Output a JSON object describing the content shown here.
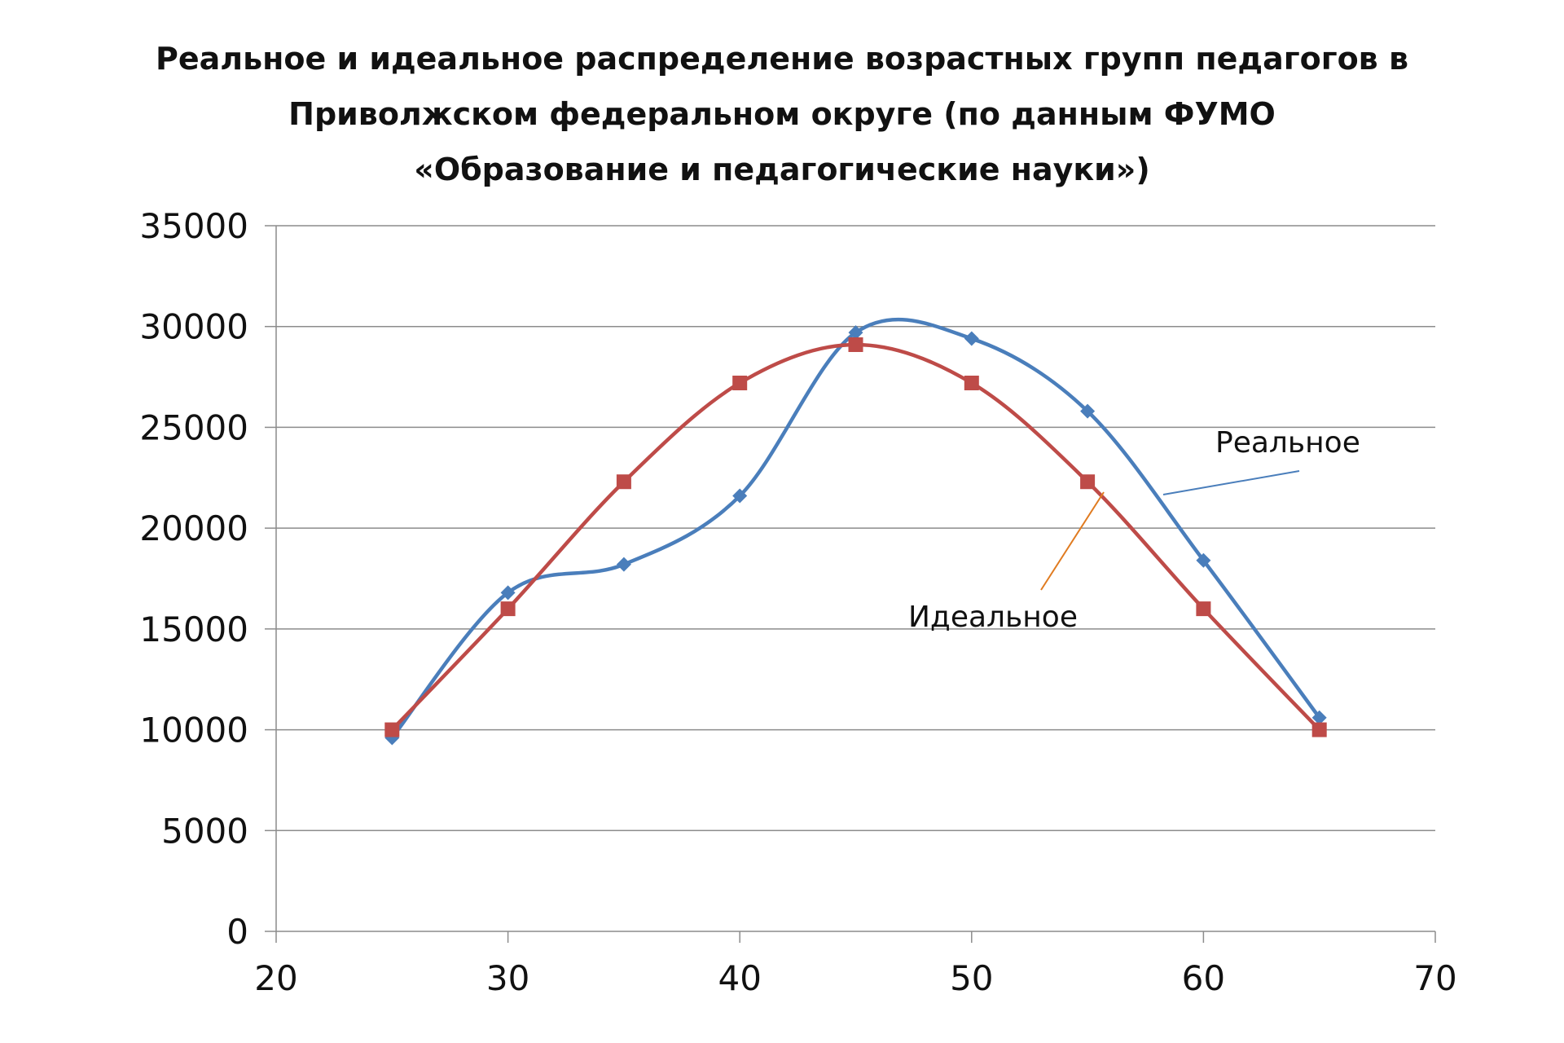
{
  "chart_data": {
    "type": "scatter",
    "title_lines": [
      "Реальное и идеальное распределение возрастных групп педагогов в",
      "Приволжском федеральном округе (по данным  ФУМО",
      "«Образование и педагогические науки»)"
    ],
    "xlim": [
      20,
      70
    ],
    "ylim": [
      0,
      35000
    ],
    "x_ticks": [
      20,
      30,
      40,
      50,
      60,
      70
    ],
    "y_ticks": [
      0,
      5000,
      10000,
      15000,
      20000,
      25000,
      30000,
      35000
    ],
    "grid": true,
    "smooth": true,
    "series": [
      {
        "name": "Реальное",
        "color": "#4a7ebb",
        "marker": "diamond",
        "points": [
          [
            25,
            9600
          ],
          [
            30,
            16800
          ],
          [
            35,
            18200
          ],
          [
            40,
            21600
          ],
          [
            45,
            29700
          ],
          [
            50,
            29400
          ],
          [
            55,
            25800
          ],
          [
            60,
            18400
          ],
          [
            65,
            10600
          ]
        ]
      },
      {
        "name": "Идеальное",
        "color": "#be4b48",
        "marker": "square",
        "points": [
          [
            25,
            10000
          ],
          [
            30,
            16000
          ],
          [
            35,
            22300
          ],
          [
            40,
            27200
          ],
          [
            45,
            29100
          ],
          [
            50,
            27200
          ],
          [
            55,
            22300
          ],
          [
            60,
            16000
          ],
          [
            65,
            10000
          ]
        ]
      }
    ],
    "annotations": [
      {
        "text": "Реальное",
        "series": 0,
        "color": "#4a7ebb"
      },
      {
        "text": "Идеальное",
        "series": 1,
        "color": "#e07b20"
      }
    ]
  }
}
